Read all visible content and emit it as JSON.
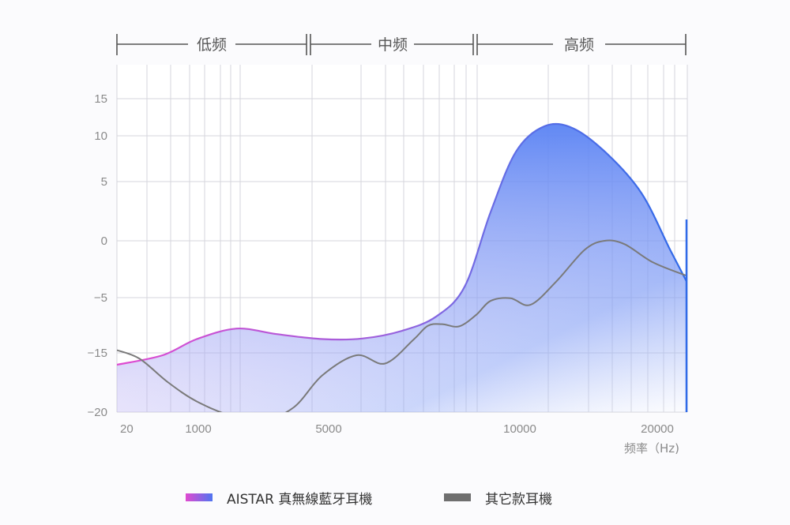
{
  "chart_data": {
    "type": "area",
    "xlabel": "频率（Hz)",
    "x_ticks": [
      "20",
      "1000",
      "5000",
      "10000",
      "20000"
    ],
    "y_ticks": [
      "15",
      "10",
      "5",
      "0",
      "−5",
      "−15",
      "−20"
    ],
    "bands": [
      "低频",
      "中频",
      "高频"
    ],
    "grid": true,
    "legend_position": "bottom",
    "series": [
      {
        "name": "AISTAR 真無線藍牙耳機",
        "color": "#4f74f0",
        "gradient": [
          "#e04ad0",
          "#4f74f0"
        ],
        "points": [
          [
            0.0,
            -16.0
          ],
          [
            0.08,
            -15.2
          ],
          [
            0.14,
            -12.5
          ],
          [
            0.21,
            -10.6
          ],
          [
            0.28,
            -11.6
          ],
          [
            0.36,
            -12.5
          ],
          [
            0.43,
            -12.4
          ],
          [
            0.5,
            -11.0
          ],
          [
            0.56,
            -8.4
          ],
          [
            0.61,
            -4.0
          ],
          [
            0.655,
            2.4
          ],
          [
            0.7,
            8.3
          ],
          [
            0.75,
            11.3
          ],
          [
            0.8,
            11.0
          ],
          [
            0.86,
            8.0
          ],
          [
            0.92,
            4.0
          ],
          [
            0.97,
            -0.8
          ],
          [
            1.0,
            -3.7
          ]
        ]
      },
      {
        "name": "其它款耳機",
        "color": "#7a7a7a",
        "points": [
          [
            0.0,
            -14.5
          ],
          [
            0.04,
            -15.5
          ],
          [
            0.09,
            -17.5
          ],
          [
            0.14,
            -19.1
          ],
          [
            0.2,
            -20.3
          ],
          [
            0.255,
            -20.7
          ],
          [
            0.31,
            -19.6
          ],
          [
            0.36,
            -16.9
          ],
          [
            0.42,
            -15.2
          ],
          [
            0.47,
            -15.9
          ],
          [
            0.52,
            -12.6
          ],
          [
            0.545,
            -10.1
          ],
          [
            0.57,
            -9.8
          ],
          [
            0.6,
            -10.2
          ],
          [
            0.63,
            -8.1
          ],
          [
            0.655,
            -5.6
          ],
          [
            0.69,
            -5.1
          ],
          [
            0.725,
            -6.3
          ],
          [
            0.77,
            -3.6
          ],
          [
            0.82,
            -0.8
          ],
          [
            0.855,
            0.0
          ],
          [
            0.89,
            -0.3
          ],
          [
            0.94,
            -1.9
          ],
          [
            1.0,
            -3.1
          ]
        ]
      }
    ]
  }
}
